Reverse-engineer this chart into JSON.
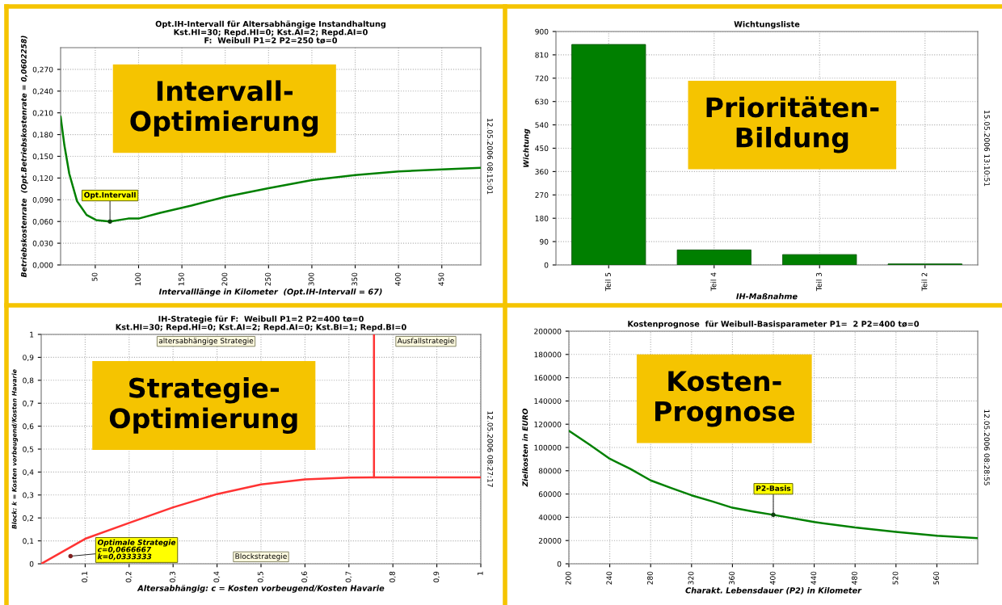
{
  "chart_data": [
    {
      "type": "line",
      "title": "Opt.IH-Intervall für Altersabhängige Instandhaltung\nKst.HI=30; Repd.HI=0; Kst.AI=2; Repd.AI=0\nF:  Weibull P1=2 P2=250 tø=0",
      "xlabel": "Intervalllänge in Kilometer  (Opt.IH-Intervall = 67)",
      "ylabel": "Betriebskostenrate  (Opt.Betriebskostenrate = 0,0602258)",
      "x": [
        10,
        14.4,
        20,
        29,
        40,
        51,
        67,
        88,
        100,
        125,
        150,
        161,
        200,
        250,
        300,
        350,
        400,
        450,
        495
      ],
      "series": [
        {
          "color": "#008000",
          "values": [
            0.205,
            0.165,
            0.126,
            0.088,
            0.069,
            0.062,
            0.06,
            0.064,
            0.064,
            0.072,
            0.079,
            0.082,
            0.094,
            0.106,
            0.117,
            0.124,
            0.129,
            0.132,
            0.134
          ]
        }
      ],
      "xlim": [
        10,
        495
      ],
      "xticks": [
        50,
        100,
        150,
        200,
        250,
        300,
        350,
        400,
        450
      ],
      "ylim": [
        0,
        0.3
      ],
      "yticks": [
        {
          "value": 0,
          "label": "0,000"
        },
        {
          "value": 0.03,
          "label": "0,030"
        },
        {
          "value": 0.06,
          "label": "0,060"
        },
        {
          "value": 0.09,
          "label": "0,090"
        },
        {
          "value": 0.12,
          "label": "0,120"
        },
        {
          "value": 0.15,
          "label": "0,150"
        },
        {
          "value": 0.18,
          "label": "0,180"
        },
        {
          "value": 0.21,
          "label": "0,210"
        },
        {
          "value": 0.24,
          "label": "0,240"
        },
        {
          "value": 0.27,
          "label": "0,270"
        }
      ],
      "grid": true,
      "annotations": [
        "Intervall-\nOptimierung",
        {
          "text": "Opt.Intervall",
          "x": 67,
          "y": 0.06
        },
        "12.05.2006 08:15:01"
      ]
    },
    {
      "type": "bar",
      "title": "Wichtungsliste",
      "xlabel": "IH-Maßnahme",
      "ylabel": "Wichtung",
      "categories": [
        "Teil 5",
        "Teil 4",
        "Teil 3",
        "Teil 2"
      ],
      "values": [
        850,
        58,
        40,
        4
      ],
      "color": "#007f00",
      "ylim": [
        0,
        900
      ],
      "yticks": [
        0,
        90,
        180,
        270,
        360,
        450,
        540,
        630,
        720,
        810,
        900
      ],
      "grid": true,
      "annotations": [
        "Prioritäten-\nBildung",
        "15.05.2006 13:10:51"
      ]
    },
    {
      "type": "line",
      "title": "IH-Strategie für F:  Weibull P1=2 P2=400 tø=0\nKst.HI=30; Repd.HI=0; Kst.AI=2; Repd.AI=0; Kst.BI=1; Repd.BI=0",
      "xlabel": "Altersabhängig: c = Kosten vorbeugend/Kosten Havarie",
      "ylabel": "Block: k = Kosten vorbeugend/Kosten Havarie",
      "series": [
        {
          "color": "#ff3333",
          "x": [
            0,
            0.1,
            0.2,
            0.3,
            0.4,
            0.5,
            0.6,
            0.7,
            0.757,
            1
          ],
          "values": [
            0,
            0.109,
            0.178,
            0.246,
            0.304,
            0.346,
            0.368,
            0.376,
            0.377,
            0.377
          ]
        },
        {
          "color": "#ff3333",
          "x": [
            0.757,
            0.757
          ],
          "values": [
            0.377,
            1
          ]
        }
      ],
      "xlim": [
        0,
        1
      ],
      "ylim": [
        0,
        1
      ],
      "xticks": [
        {
          "value": 0.1,
          "label": "0,1"
        },
        {
          "value": 0.2,
          "label": "0,2"
        },
        {
          "value": 0.3,
          "label": "0,3"
        },
        {
          "value": 0.4,
          "label": "0,4"
        },
        {
          "value": 0.5,
          "label": "0,5"
        },
        {
          "value": 0.6,
          "label": "0,6"
        },
        {
          "value": 0.7,
          "label": "0,7"
        },
        {
          "value": 0.8,
          "label": "0,8"
        },
        {
          "value": 0.9,
          "label": "0,9"
        },
        1
      ],
      "yticks": [
        0,
        {
          "value": 0.1,
          "label": "0,1"
        },
        {
          "value": 0.2,
          "label": "0,2"
        },
        {
          "value": 0.3,
          "label": "0,3"
        },
        {
          "value": 0.4,
          "label": "0,4"
        },
        {
          "value": 0.5,
          "label": "0,5"
        },
        {
          "value": 0.6,
          "label": "0,6"
        },
        {
          "value": 0.7,
          "label": "0,7"
        },
        {
          "value": 0.8,
          "label": "0,8"
        },
        {
          "value": 0.9,
          "label": "0,9"
        },
        1
      ],
      "grid": true,
      "annotations": [
        "Strategie-\nOptimierung",
        {
          "text": "Optimale Strategie\nc=0,0666667\nk=0,0333333",
          "x": 0.0667,
          "y": 0.0333
        },
        "altersabhängige Strategie",
        "Ausfallstrategie",
        "Blockstrategie",
        "12.05.2006 08:27:17"
      ]
    },
    {
      "type": "line",
      "title": "Kostenprognose  für Weibull-Basisparameter P1=  2 P2=400 tø=0",
      "xlabel": "Charakt. Lebensdauer (P2) in Kilometer",
      "ylabel": "Zielkosten in EURO",
      "x": [
        200,
        220,
        240,
        260,
        280,
        300,
        320,
        340,
        360,
        380,
        400,
        440,
        480,
        520,
        560,
        600
      ],
      "series": [
        {
          "color": "#008000",
          "values": [
            114400,
            102600,
            90300,
            81700,
            71700,
            65200,
            58900,
            53700,
            48200,
            45000,
            42100,
            35900,
            31200,
            27500,
            24100,
            22000
          ]
        }
      ],
      "xlim": [
        200,
        600
      ],
      "xticks": [
        200,
        240,
        280,
        320,
        360,
        400,
        440,
        480,
        520,
        560
      ],
      "ylim": [
        0,
        200000
      ],
      "yticks": [
        0,
        20000,
        40000,
        60000,
        80000,
        100000,
        120000,
        140000,
        160000,
        180000,
        200000
      ],
      "grid": true,
      "annotations": [
        "Kosten-\nPrognose",
        {
          "text": "P2-Basis",
          "x": 400,
          "y": 42100
        },
        "12.05.2006 08:28:55"
      ]
    }
  ]
}
